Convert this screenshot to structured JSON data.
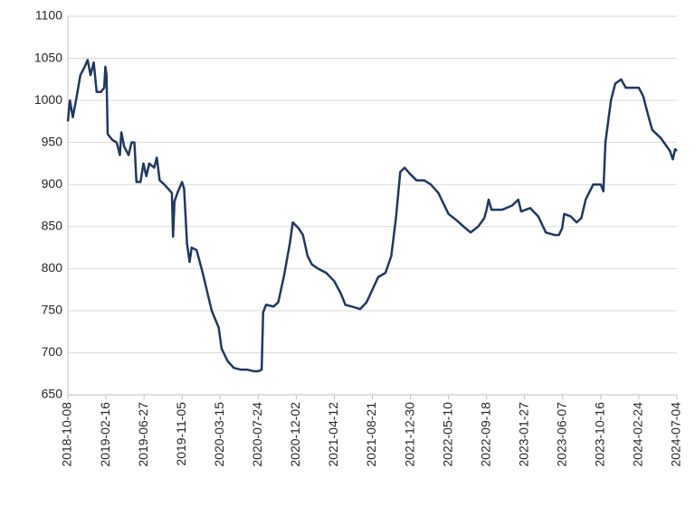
{
  "chart_data": {
    "type": "line",
    "x": [
      "2018-10-08",
      "2018-10-15",
      "2018-10-25",
      "2018-11-05",
      "2018-11-20",
      "2018-12-05",
      "2018-12-15",
      "2018-12-25",
      "2019-01-05",
      "2019-01-15",
      "2019-01-30",
      "2019-02-10",
      "2019-02-14",
      "2019-02-18",
      "2019-02-22",
      "2019-03-10",
      "2019-03-25",
      "2019-04-05",
      "2019-04-10",
      "2019-04-20",
      "2019-05-05",
      "2019-05-15",
      "2019-05-25",
      "2019-06-01",
      "2019-06-15",
      "2019-06-25",
      "2019-07-05",
      "2019-07-15",
      "2019-08-01",
      "2019-08-10",
      "2019-08-20",
      "2019-09-05",
      "2019-10-01",
      "2019-10-05",
      "2019-10-10",
      "2019-10-20",
      "2019-11-05",
      "2019-11-12",
      "2019-11-22",
      "2019-12-01",
      "2019-12-08",
      "2019-12-25",
      "2020-01-15",
      "2020-02-15",
      "2020-03-10",
      "2020-03-20",
      "2020-04-10",
      "2020-05-01",
      "2020-05-25",
      "2020-06-15",
      "2020-07-10",
      "2020-07-24",
      "2020-08-05",
      "2020-08-10",
      "2020-08-20",
      "2020-09-15",
      "2020-10-01",
      "2020-10-20",
      "2020-11-10",
      "2020-11-20",
      "2020-12-10",
      "2020-12-25",
      "2021-01-10",
      "2021-01-25",
      "2021-02-15",
      "2021-03-15",
      "2021-04-12",
      "2021-05-05",
      "2021-05-20",
      "2021-06-10",
      "2021-07-10",
      "2021-08-01",
      "2021-08-21",
      "2021-09-10",
      "2021-10-05",
      "2021-10-25",
      "2021-11-10",
      "2021-11-25",
      "2021-12-10",
      "2021-12-30",
      "2022-01-20",
      "2022-02-15",
      "2022-03-10",
      "2022-04-05",
      "2022-05-10",
      "2022-06-05",
      "2022-07-01",
      "2022-07-25",
      "2022-08-20",
      "2022-09-10",
      "2022-09-18",
      "2022-09-25",
      "2022-10-05",
      "2022-11-10",
      "2022-12-15",
      "2023-01-05",
      "2023-01-15",
      "2023-02-15",
      "2023-03-15",
      "2023-04-10",
      "2023-05-10",
      "2023-05-25",
      "2023-06-05",
      "2023-06-12",
      "2023-07-05",
      "2023-07-25",
      "2023-08-10",
      "2023-08-25",
      "2023-09-20",
      "2023-10-05",
      "2023-10-16",
      "2023-10-25",
      "2023-11-01",
      "2023-11-20",
      "2023-12-05",
      "2023-12-25",
      "2024-01-10",
      "2024-02-24",
      "2024-03-10",
      "2024-03-25",
      "2024-04-10",
      "2024-05-10",
      "2024-06-10",
      "2024-06-20",
      "2024-06-28",
      "2024-07-04"
    ],
    "series": [
      {
        "color": "#1f3864",
        "values": [
          975,
          1000,
          980,
          1000,
          1030,
          1040,
          1048,
          1030,
          1045,
          1010,
          1010,
          1015,
          1040,
          1030,
          960,
          953,
          950,
          935,
          962,
          945,
          935,
          950,
          950,
          903,
          903,
          925,
          910,
          925,
          920,
          932,
          905,
          900,
          890,
          838,
          880,
          890,
          903,
          895,
          830,
          808,
          825,
          822,
          795,
          750,
          730,
          705,
          690,
          682,
          680,
          680,
          678,
          678,
          680,
          748,
          757,
          755,
          760,
          790,
          830,
          855,
          848,
          840,
          815,
          805,
          800,
          795,
          785,
          770,
          757,
          755,
          752,
          760,
          775,
          790,
          795,
          815,
          860,
          915,
          920,
          912,
          905,
          905,
          900,
          890,
          865,
          858,
          850,
          843,
          850,
          860,
          870,
          882,
          870,
          870,
          875,
          882,
          868,
          872,
          862,
          843,
          840,
          840,
          848,
          865,
          862,
          855,
          860,
          882,
          900,
          900,
          900,
          892,
          950,
          1000,
          1020,
          1025,
          1015,
          1015,
          1005,
          985,
          965,
          955,
          940,
          930,
          942,
          940
        ]
      }
    ],
    "xlim": [
      "2018-10-08",
      "2024-07-04"
    ],
    "xticks": [
      "2018-10-08",
      "2019-02-16",
      "2019-06-27",
      "2019-11-05",
      "2020-03-15",
      "2020-07-24",
      "2020-12-02",
      "2021-04-12",
      "2021-08-21",
      "2021-12-30",
      "2022-05-10",
      "2022-09-18",
      "2023-01-27",
      "2023-06-07",
      "2023-10-16",
      "2024-02-24",
      "2024-07-04"
    ],
    "ylim": [
      650,
      1100
    ],
    "yticks": [
      650,
      700,
      750,
      800,
      850,
      900,
      950,
      1000,
      1050,
      1100
    ],
    "grid": true
  }
}
